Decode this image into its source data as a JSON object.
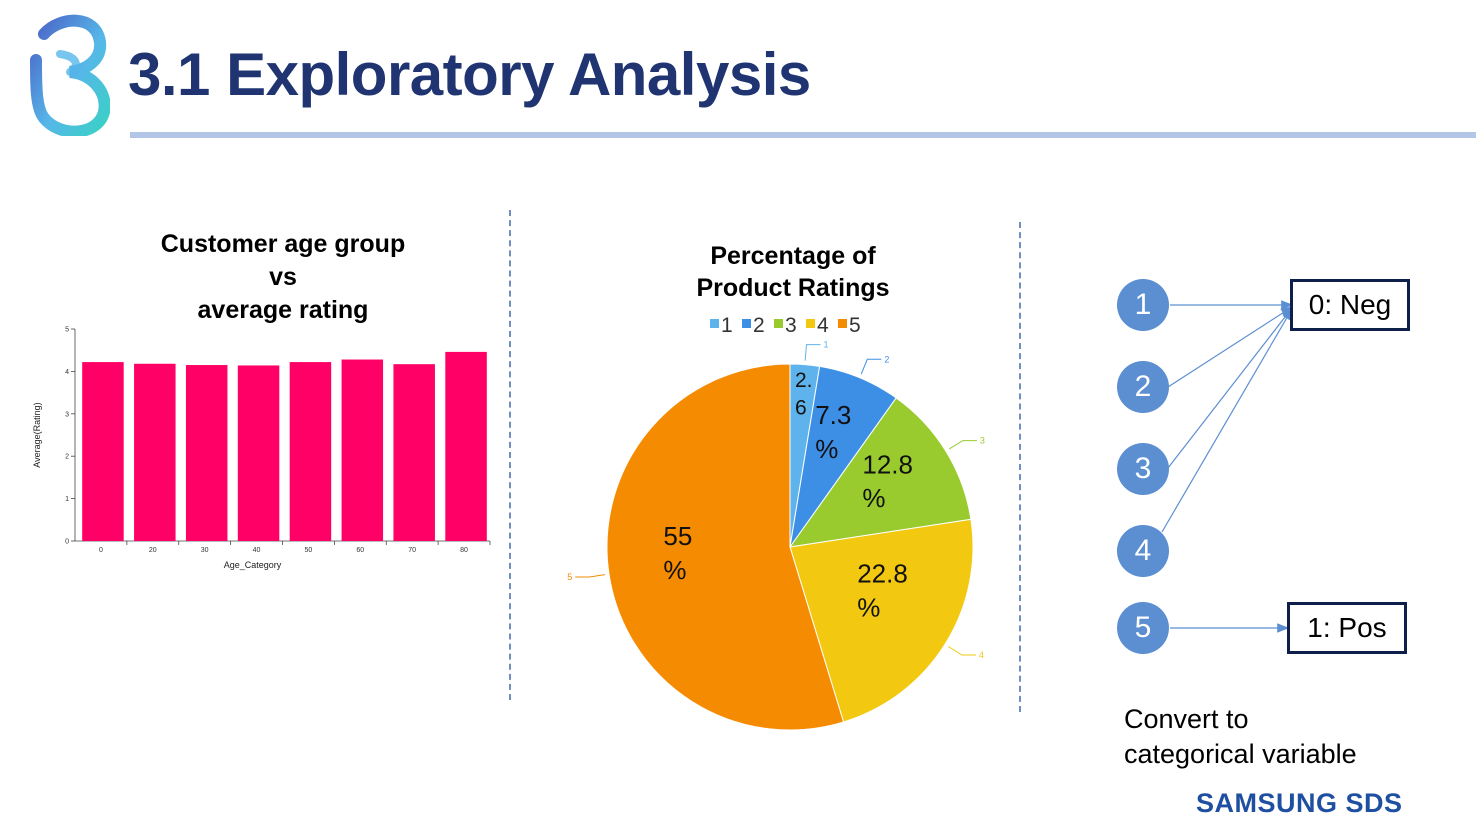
{
  "slide": {
    "title": "3.1 Exploratory Analysis",
    "colors": {
      "title": "#1f3471",
      "rule": "#b3c6e7",
      "divider": "#6f8fc0",
      "brand": "#1f4fa0"
    },
    "logo_icon": "b-swirl-logo"
  },
  "bar_panel": {
    "title_lines": [
      "Customer age group",
      "vs",
      "average rating"
    ]
  },
  "pie_panel": {
    "title_lines": [
      "Percentage of",
      "Product Ratings"
    ]
  },
  "chart_data": [
    {
      "type": "bar",
      "title": "Customer age group vs average rating",
      "xlabel": "Age_Category",
      "ylabel": "Average(Rating)",
      "categories": [
        "0",
        "20",
        "30",
        "40",
        "50",
        "60",
        "70",
        "80"
      ],
      "values": [
        4.22,
        4.18,
        4.15,
        4.14,
        4.22,
        4.28,
        4.17,
        4.46
      ],
      "ylim": [
        0,
        5
      ],
      "yticks": [
        "0",
        "1",
        "2",
        "3",
        "4",
        "5"
      ],
      "color": "#ff0066",
      "grid": false
    },
    {
      "type": "pie",
      "title": "Percentage of Product Ratings",
      "legend_position": "top",
      "categories": [
        "1",
        "2",
        "3",
        "4",
        "5"
      ],
      "values": [
        2.6,
        7.3,
        12.8,
        22.8,
        55
      ],
      "data_labels": [
        [
          "2.",
          "6"
        ],
        [
          "7.3",
          "%"
        ],
        [
          "12.8",
          "%"
        ],
        [
          "22.8",
          "%"
        ],
        [
          "55",
          "%"
        ]
      ],
      "colors": [
        "#5fb3ec",
        "#3d8fe6",
        "#9acb2e",
        "#f2c811",
        "#f58b00"
      ]
    }
  ],
  "mapping": {
    "ratings": [
      "1",
      "2",
      "3",
      "4",
      "5"
    ],
    "neg_label": "0: Neg",
    "pos_label": "1: Pos",
    "circle_color": "#5b8fd1",
    "arrow_color": "#5b8fd1"
  },
  "note": {
    "lines": [
      "Convert to",
      "categorical variable"
    ]
  },
  "footer": {
    "brand": "SAMSUNG SDS"
  }
}
